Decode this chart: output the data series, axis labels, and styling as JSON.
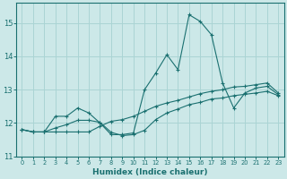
{
  "xlabel": "Humidex (Indice chaleur)",
  "bg_color": "#cce8e8",
  "line_color": "#1a7070",
  "grid_color": "#aad4d4",
  "ylim": [
    11.0,
    15.6
  ],
  "xlim": [
    -0.5,
    23.5
  ],
  "yticks": [
    11,
    12,
    13,
    14,
    15
  ],
  "xticks": [
    0,
    1,
    2,
    3,
    4,
    5,
    6,
    7,
    8,
    9,
    10,
    11,
    12,
    13,
    14,
    15,
    16,
    17,
    18,
    19,
    20,
    21,
    22,
    23
  ],
  "series": [
    [
      11.8,
      11.73,
      11.73,
      12.2,
      12.2,
      12.45,
      12.3,
      12.0,
      11.65,
      11.65,
      11.7,
      13.0,
      13.5,
      14.05,
      13.6,
      15.25,
      15.05,
      14.65,
      13.2,
      12.45,
      12.9,
      13.05,
      13.1,
      12.85
    ],
    [
      11.8,
      11.73,
      11.73,
      11.73,
      11.73,
      11.73,
      11.73,
      11.9,
      12.05,
      12.1,
      12.2,
      12.35,
      12.5,
      12.6,
      12.68,
      12.78,
      12.88,
      12.95,
      13.0,
      13.08,
      13.1,
      13.15,
      13.2,
      12.9
    ],
    [
      11.8,
      11.73,
      11.73,
      11.85,
      11.95,
      12.08,
      12.08,
      12.02,
      11.72,
      11.62,
      11.65,
      11.78,
      12.1,
      12.3,
      12.42,
      12.55,
      12.62,
      12.72,
      12.75,
      12.82,
      12.86,
      12.9,
      12.95,
      12.82
    ]
  ]
}
